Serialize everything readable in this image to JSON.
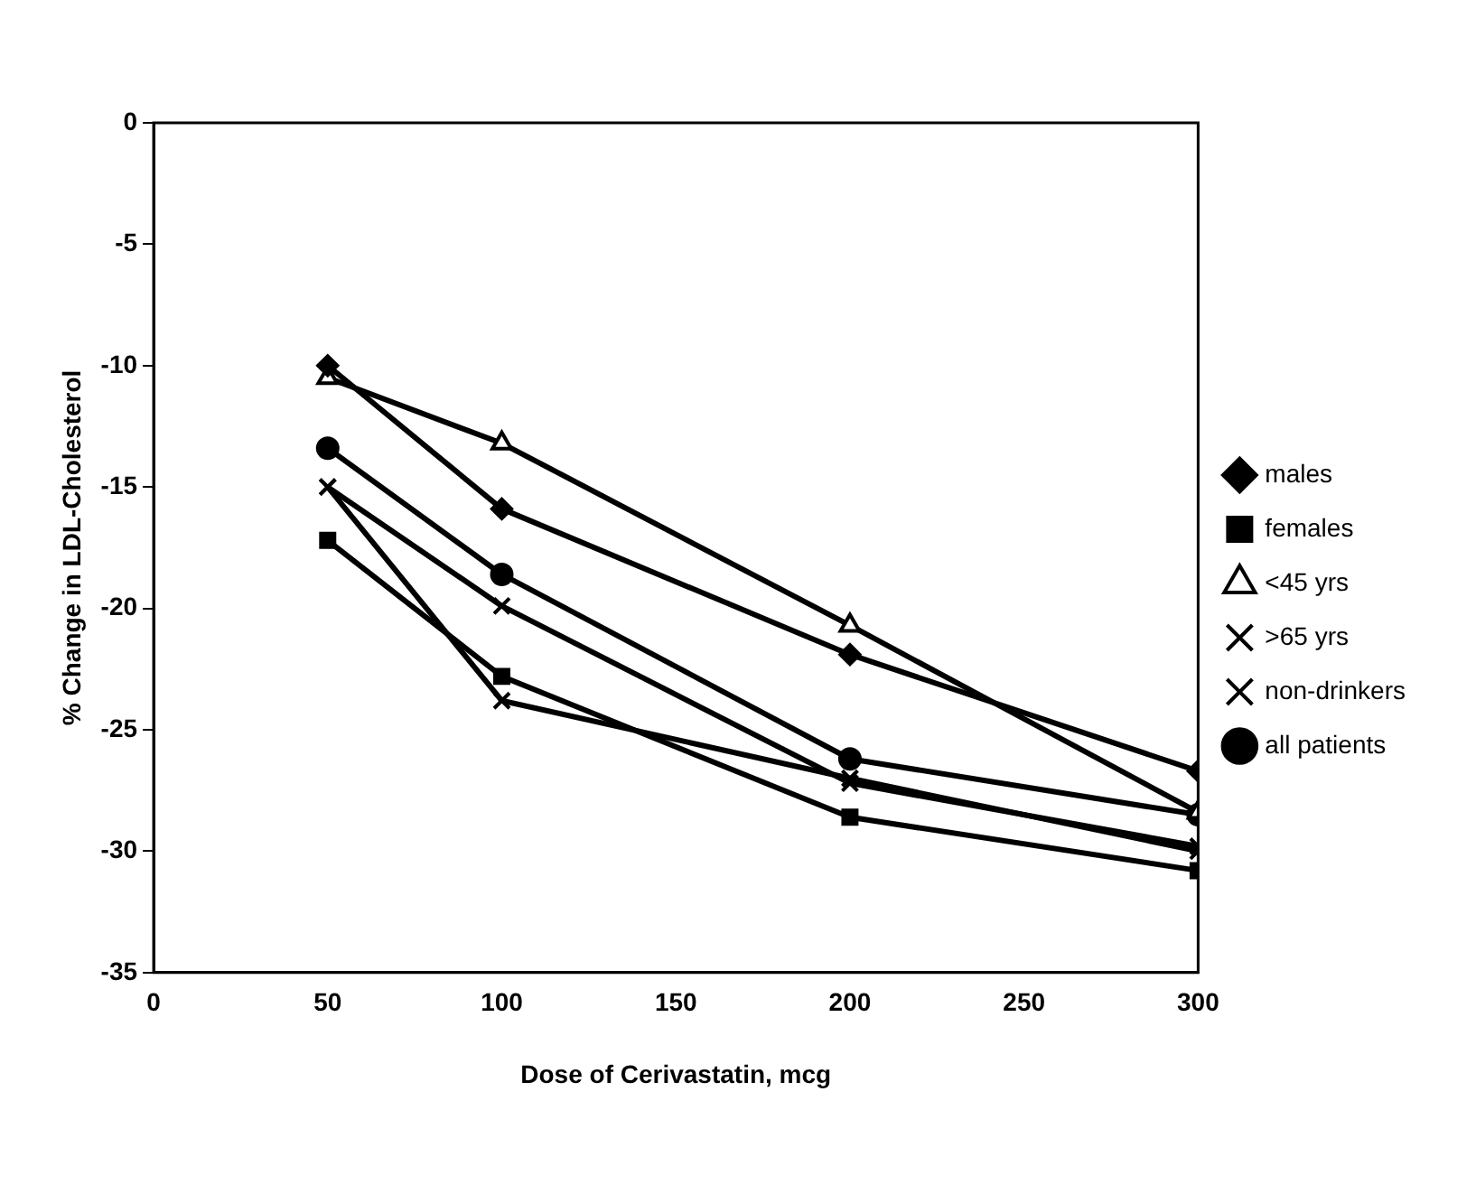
{
  "chart_data": {
    "type": "line",
    "xlabel": "Dose of Cerivastatin, mcg",
    "ylabel": "% Change in LDL-Cholesterol",
    "x": [
      50,
      100,
      200,
      300
    ],
    "xlim": [
      0,
      300
    ],
    "xticks": [
      0,
      50,
      100,
      150,
      200,
      250,
      300
    ],
    "ylim": [
      -35,
      0
    ],
    "yticks": [
      -35,
      -30,
      -25,
      -20,
      -15,
      -10,
      -5,
      0
    ],
    "grid": false,
    "legend": "right",
    "series": [
      {
        "name": "males",
        "color": "#000000",
        "marker": "diamond",
        "values": [
          -10,
          -15.9,
          -21.9,
          -26.7
        ]
      },
      {
        "name": "females",
        "color": "#000000",
        "marker": "square",
        "values": [
          -17.2,
          -22.8,
          -28.6,
          -30.8
        ]
      },
      {
        "name": "<45 yrs",
        "color": "#000000",
        "marker": "triangle",
        "values": [
          -10.5,
          -13.2,
          -20.7,
          -28.4
        ]
      },
      {
        "name": ">65 yrs",
        "color": "#000000",
        "marker": "cross",
        "values": [
          -15,
          -19.9,
          -27.2,
          -29.8
        ]
      },
      {
        "name": "non-drinkers",
        "color": "#000000",
        "marker": "cross",
        "values": [
          -15,
          -23.8,
          -27,
          -30
        ]
      },
      {
        "name": "all patients",
        "color": "#000000",
        "marker": "circle",
        "values": [
          -13.4,
          -18.6,
          -26.2,
          -28.5
        ]
      }
    ]
  }
}
